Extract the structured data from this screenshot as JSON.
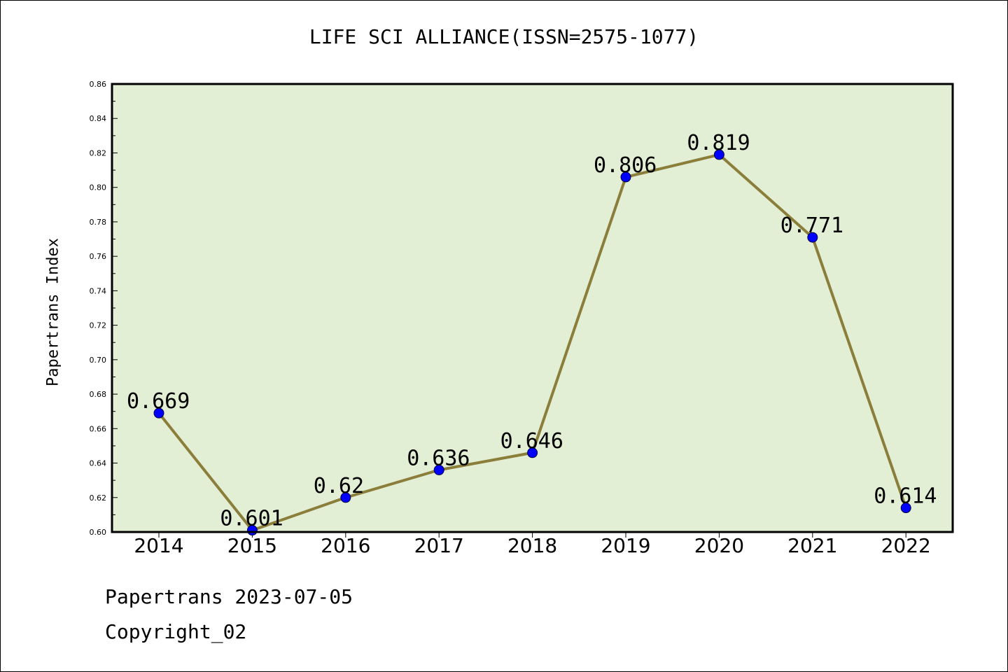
{
  "title": "LIFE SCI ALLIANCE(ISSN=2575-1077)",
  "footer": {
    "line1": "Papertrans 2023-07-05",
    "line2": "Copyright_02"
  },
  "colors": {
    "plot_background": "#e2efd4",
    "line": "#8b7d3a",
    "marker": "#0000ff"
  },
  "chart_data": {
    "type": "line",
    "title": "LIFE SCI ALLIANCE(ISSN=2575-1077)",
    "xlabel": "",
    "ylabel": "Papertrans Index",
    "categories": [
      "2014",
      "2015",
      "2016",
      "2017",
      "2018",
      "2019",
      "2020",
      "2021",
      "2022"
    ],
    "values": [
      0.669,
      0.601,
      0.62,
      0.636,
      0.646,
      0.806,
      0.819,
      0.771,
      0.614
    ],
    "data_labels": [
      "0.669",
      "0.601",
      "0.62",
      "0.636",
      "0.646",
      "0.806",
      "0.819",
      "0.771",
      "0.614"
    ],
    "ylim": [
      0.6,
      0.86
    ],
    "yticks": [
      "0.60",
      "0.62",
      "0.64",
      "0.66",
      "0.68",
      "0.70",
      "0.72",
      "0.74",
      "0.76",
      "0.78",
      "0.80",
      "0.82",
      "0.84",
      "0.86"
    ],
    "grid": false,
    "legend": "none"
  }
}
